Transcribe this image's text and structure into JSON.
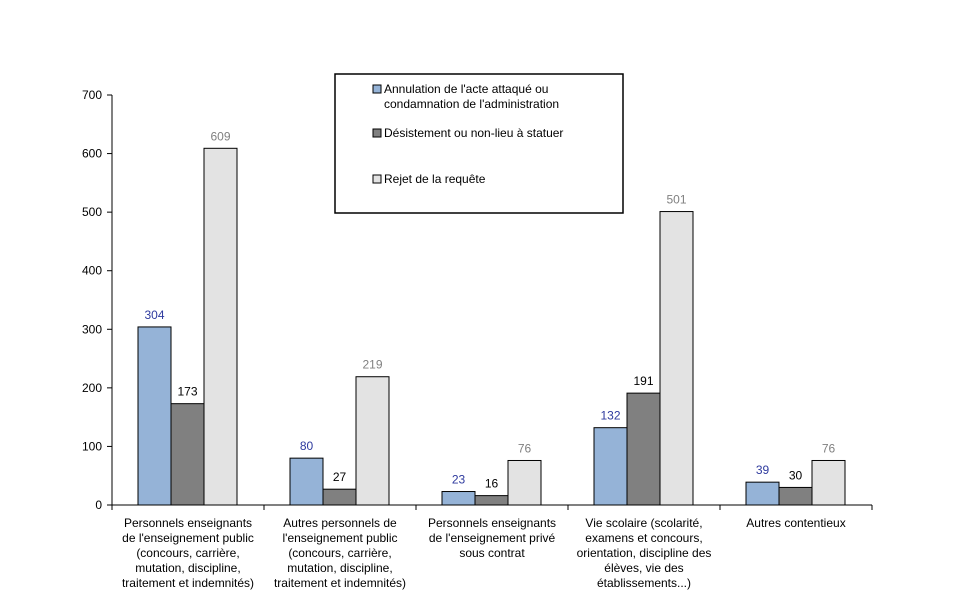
{
  "chart_data": {
    "type": "bar",
    "categories": [
      [
        "Personnels enseignants",
        "de l'enseignement public",
        "(concours, carrière,",
        "mutation, discipline,",
        "traitement et indemnités)"
      ],
      [
        "Autres personnels de",
        "l'enseignement public",
        "(concours, carrière,",
        "mutation, discipline,",
        "traitement et indemnités)"
      ],
      [
        "Personnels enseignants",
        "de l'enseignement privé",
        "sous contrat"
      ],
      [
        "Vie scolaire (scolarité,",
        "examens et concours,",
        "orientation, discipline des",
        "élèves, vie des",
        "établissements...)"
      ],
      [
        "Autres contentieux"
      ]
    ],
    "series": [
      {
        "name": "Annulation de l'acte attaqué ou condamnation de l'administration",
        "legend_lines": [
          "Annulation de l'acte attaqué ou",
          "condamnation de l'administration"
        ],
        "values": [
          304,
          80,
          23,
          132,
          39
        ],
        "color": "#95b3d7",
        "label_color": "#2e3a9e"
      },
      {
        "name": "Désistement ou non-lieu à statuer",
        "legend_lines": [
          "Désistement ou non-lieu à statuer"
        ],
        "values": [
          173,
          27,
          16,
          191,
          30
        ],
        "color": "#808080",
        "label_color": "#000000"
      },
      {
        "name": "Rejet de la requête",
        "legend_lines": [
          "Rejet de la requête"
        ],
        "values": [
          609,
          219,
          76,
          501,
          76
        ],
        "color": "#e3e3e3",
        "label_color": "#808080"
      }
    ],
    "ylim": [
      0,
      700
    ],
    "yticks": [
      0,
      100,
      200,
      300,
      400,
      500,
      600,
      700
    ],
    "grid": false,
    "legend_position": "top-center",
    "title": "",
    "xlabel": "",
    "ylabel": ""
  }
}
